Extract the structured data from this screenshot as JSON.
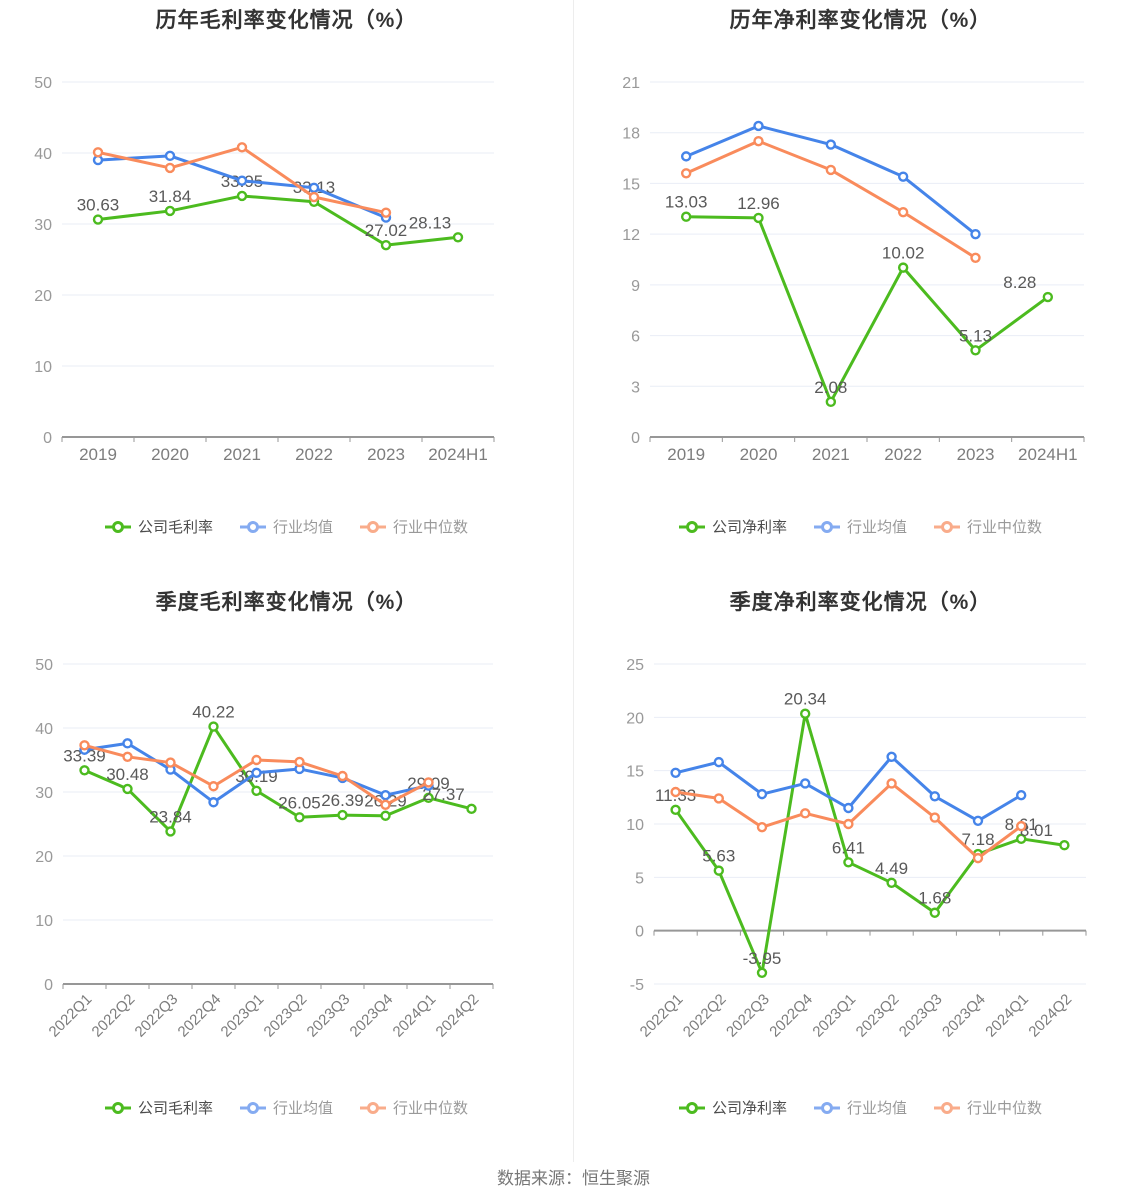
{
  "footer": {
    "source_label": "数据来源：恒生聚源"
  },
  "colors": {
    "company_green": "#4CBB1F",
    "industry_mean_blue": "#4584E9",
    "industry_median_orange": "#F98B5C",
    "legend_mean_blue": "#85ABF1",
    "legend_median_orange": "#F9AC8B",
    "grid_line": "#E9EDF6",
    "axis_line": "#979797",
    "y_tick_text": "#999999",
    "x_tick_text": "#7d7d7d",
    "data_label_text": "#595959",
    "title_text": "#333333"
  },
  "chart_data": [
    {
      "id": "annual-gross-margin",
      "type": "line",
      "title": "历年毛利率变化情况（%）",
      "categories": [
        "2019",
        "2020",
        "2021",
        "2022",
        "2023",
        "2024H1"
      ],
      "ylim": [
        0,
        50
      ],
      "yticks": [
        0,
        10,
        20,
        30,
        40,
        50
      ],
      "x_label_rotate": 0,
      "grid": true,
      "legend_position": "bottom",
      "series": [
        {
          "name": "公司毛利率",
          "color": "#4CBB1F",
          "legend_color": "#4CBB1F",
          "show_labels": true,
          "values": [
            30.63,
            31.84,
            33.95,
            33.13,
            27.02,
            28.13
          ]
        },
        {
          "name": "行业均值",
          "color": "#4584E9",
          "legend_color": "#85ABF1",
          "show_labels": false,
          "values": [
            39.0,
            39.6,
            36.1,
            35.1,
            30.9,
            null
          ]
        },
        {
          "name": "行业中位数",
          "color": "#F98B5C",
          "legend_color": "#F9AC8B",
          "show_labels": false,
          "values": [
            40.1,
            37.9,
            40.8,
            33.8,
            31.6,
            null
          ]
        }
      ]
    },
    {
      "id": "annual-net-margin",
      "type": "line",
      "title": "历年净利率变化情况（%）",
      "categories": [
        "2019",
        "2020",
        "2021",
        "2022",
        "2023",
        "2024H1"
      ],
      "ylim": [
        0,
        21
      ],
      "yticks": [
        0,
        3,
        6,
        9,
        12,
        15,
        18,
        21
      ],
      "x_label_rotate": 0,
      "grid": true,
      "legend_position": "bottom",
      "series": [
        {
          "name": "公司净利率",
          "color": "#4CBB1F",
          "legend_color": "#4CBB1F",
          "show_labels": true,
          "values": [
            13.03,
            12.96,
            2.08,
            10.02,
            5.13,
            8.28
          ]
        },
        {
          "name": "行业均值",
          "color": "#4584E9",
          "legend_color": "#85ABF1",
          "show_labels": false,
          "values": [
            16.6,
            18.4,
            17.3,
            15.4,
            12.0,
            null
          ]
        },
        {
          "name": "行业中位数",
          "color": "#F98B5C",
          "legend_color": "#F9AC8B",
          "show_labels": false,
          "values": [
            15.6,
            17.5,
            15.8,
            13.3,
            10.6,
            null
          ]
        }
      ]
    },
    {
      "id": "quarterly-gross-margin",
      "type": "line",
      "title": "季度毛利率变化情况（%）",
      "categories": [
        "2022Q1",
        "2022Q2",
        "2022Q3",
        "2022Q4",
        "2023Q1",
        "2023Q2",
        "2023Q3",
        "2023Q4",
        "2024Q1",
        "2024Q2"
      ],
      "ylim": [
        0,
        50
      ],
      "yticks": [
        0,
        10,
        20,
        30,
        40,
        50
      ],
      "x_label_rotate": 45,
      "grid": true,
      "legend_position": "bottom",
      "series": [
        {
          "name": "公司毛利率",
          "color": "#4CBB1F",
          "legend_color": "#4CBB1F",
          "show_labels": true,
          "values": [
            33.39,
            30.48,
            23.84,
            40.22,
            30.19,
            26.05,
            26.39,
            26.29,
            29.09,
            27.37
          ]
        },
        {
          "name": "行业均值",
          "color": "#4584E9",
          "legend_color": "#85ABF1",
          "show_labels": false,
          "values": [
            36.6,
            37.6,
            33.5,
            28.4,
            33.0,
            33.6,
            32.2,
            29.5,
            31.0,
            null
          ]
        },
        {
          "name": "行业中位数",
          "color": "#F98B5C",
          "legend_color": "#F9AC8B",
          "show_labels": false,
          "values": [
            37.3,
            35.5,
            34.6,
            30.9,
            35.0,
            34.7,
            32.5,
            28.0,
            31.5,
            null
          ]
        }
      ]
    },
    {
      "id": "quarterly-net-margin",
      "type": "line",
      "title": "季度净利率变化情况（%）",
      "categories": [
        "2022Q1",
        "2022Q2",
        "2022Q3",
        "2022Q4",
        "2023Q1",
        "2023Q2",
        "2023Q3",
        "2023Q4",
        "2024Q1",
        "2024Q2"
      ],
      "ylim": [
        -5,
        25
      ],
      "yticks": [
        -5,
        0,
        5,
        10,
        15,
        20,
        25
      ],
      "x_label_rotate": 45,
      "grid": true,
      "legend_position": "bottom",
      "series": [
        {
          "name": "公司净利率",
          "color": "#4CBB1F",
          "legend_color": "#4CBB1F",
          "show_labels": true,
          "values": [
            11.33,
            5.63,
            -3.95,
            20.34,
            6.41,
            4.49,
            1.68,
            7.18,
            8.61,
            8.01
          ]
        },
        {
          "name": "行业均值",
          "color": "#4584E9",
          "legend_color": "#85ABF1",
          "show_labels": false,
          "values": [
            14.8,
            15.8,
            12.8,
            13.8,
            11.5,
            16.3,
            12.6,
            10.3,
            12.7,
            null
          ]
        },
        {
          "name": "行业中位数",
          "color": "#F98B5C",
          "legend_color": "#F9AC8B",
          "show_labels": false,
          "values": [
            13.0,
            12.4,
            9.7,
            11.0,
            10.0,
            13.8,
            10.6,
            6.8,
            9.8,
            null
          ]
        }
      ]
    }
  ]
}
